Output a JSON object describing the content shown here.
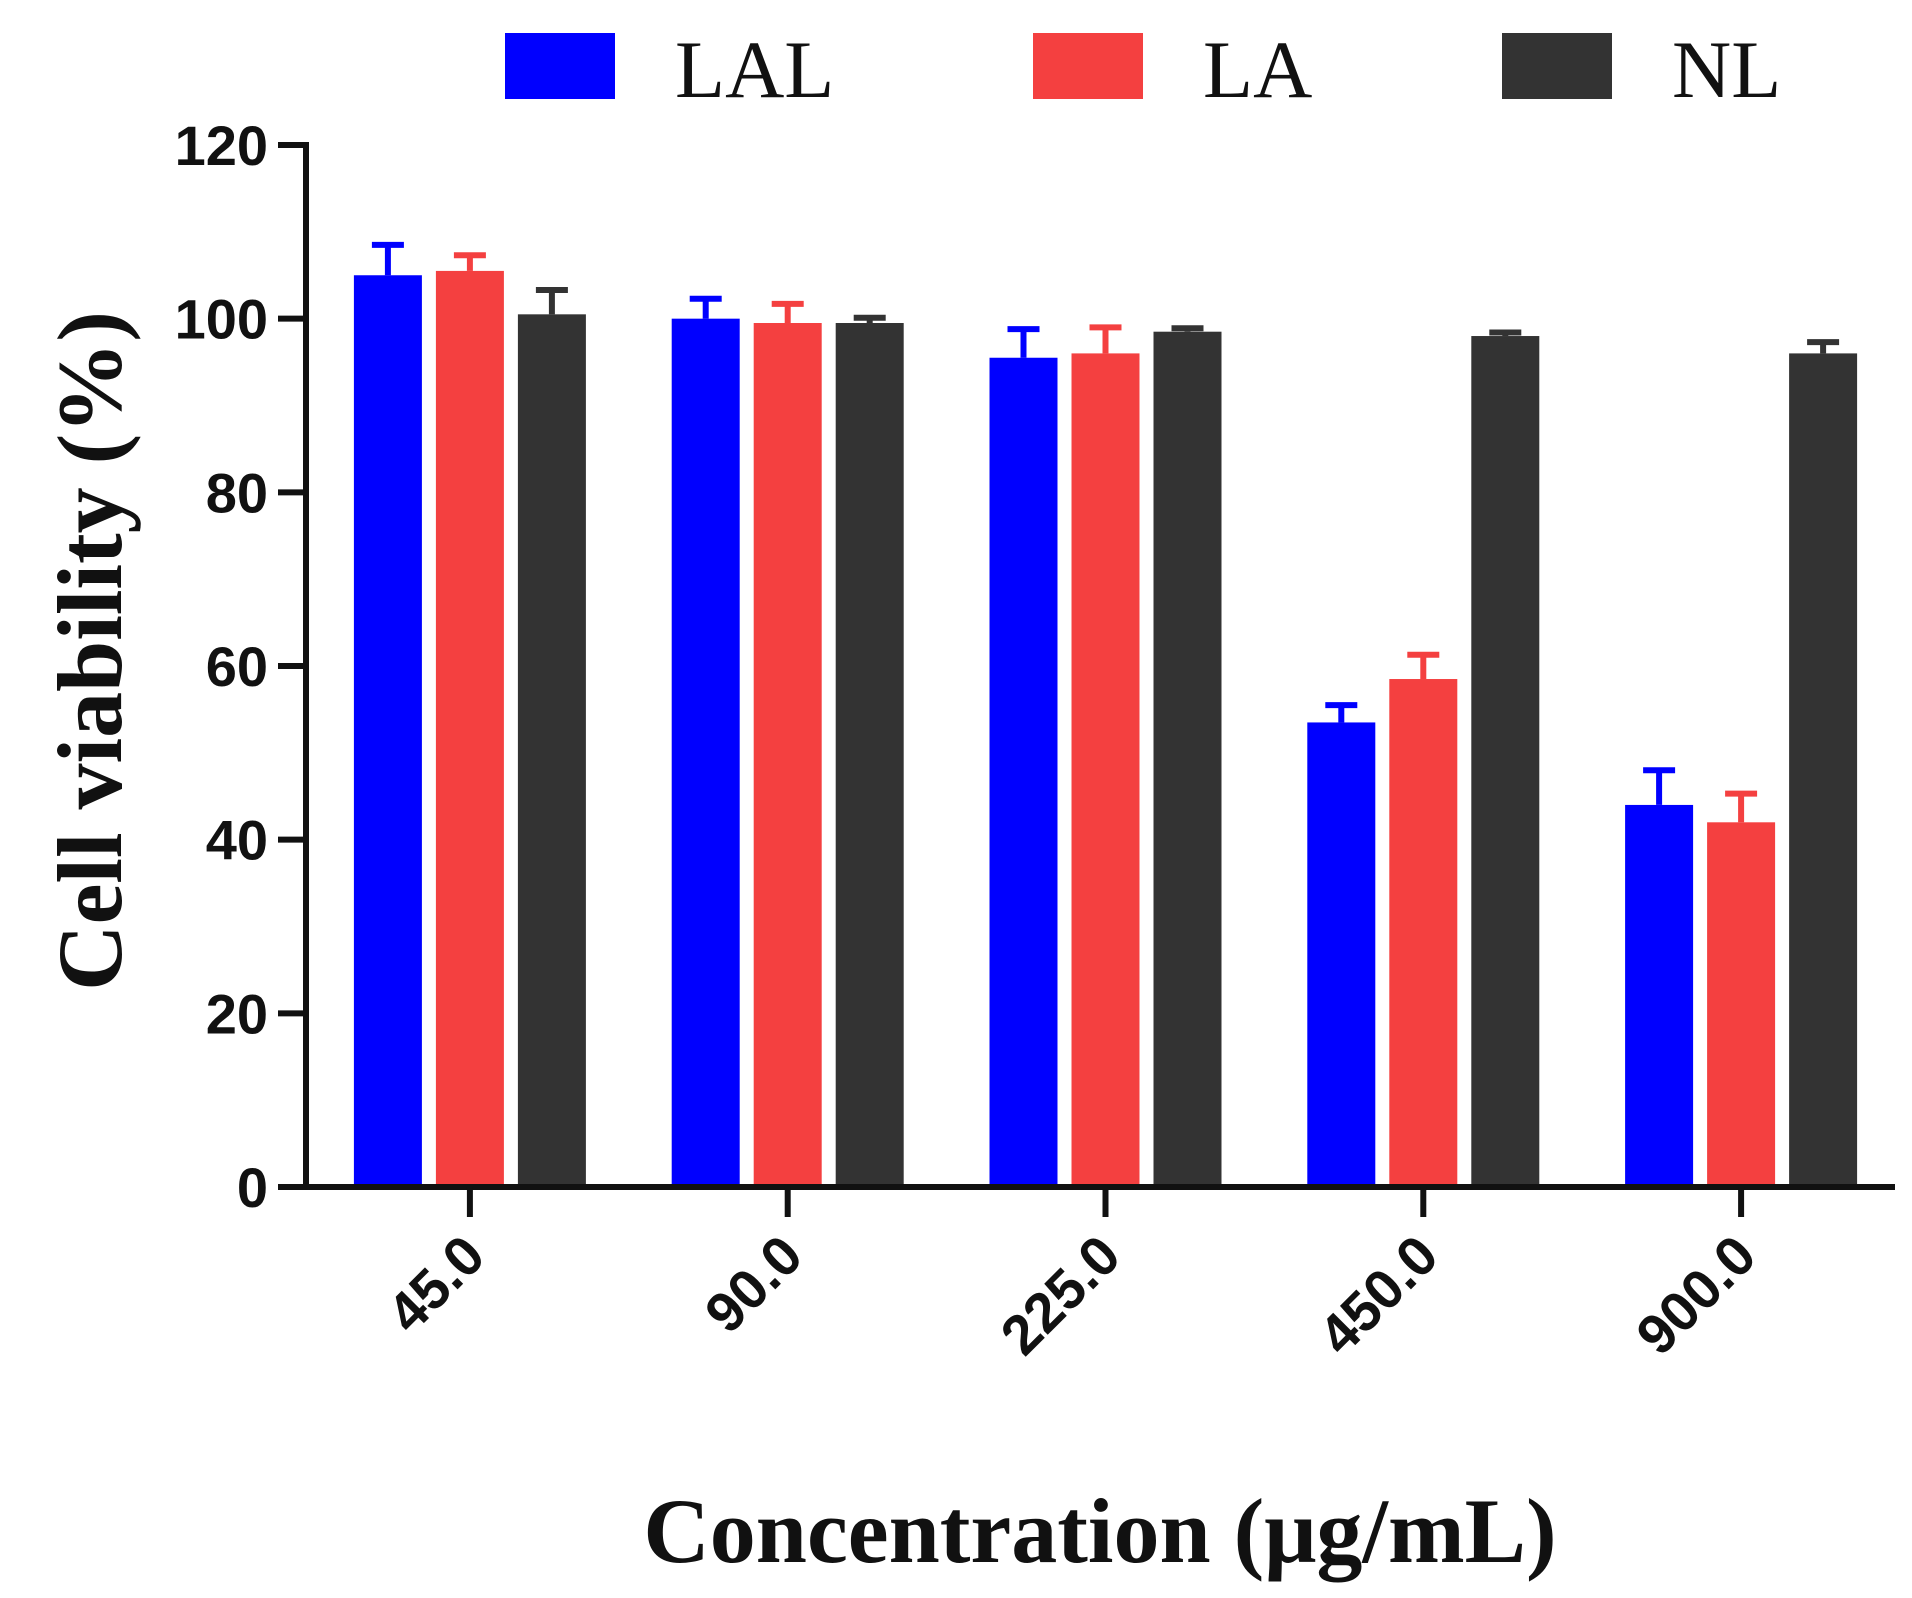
{
  "chart_data": {
    "type": "bar",
    "title": "",
    "xlabel": "Concentration (μg/mL)",
    "ylabel": "Cell viability (%)",
    "ylim": [
      0,
      120
    ],
    "yticks": [
      "0",
      "20",
      "40",
      "60",
      "80",
      "100",
      "120"
    ],
    "categories": [
      "45.0",
      "90.0",
      "225.0",
      "450.0",
      "900.0"
    ],
    "legend_position": "top",
    "grid": false,
    "series": [
      {
        "name": "LAL",
        "color": "#0000ff",
        "values": [
          105.0,
          100.0,
          95.5,
          53.5,
          44.0
        ],
        "errors": [
          3.5,
          2.3,
          3.3,
          2.0,
          4.0
        ]
      },
      {
        "name": "LA",
        "color": "#f44040",
        "values": [
          105.5,
          99.5,
          96.0,
          58.5,
          42.0
        ],
        "errors": [
          1.8,
          2.2,
          3.0,
          2.8,
          3.3
        ]
      },
      {
        "name": "NL",
        "color": "#333333",
        "values": [
          100.5,
          99.5,
          98.5,
          98.0,
          96.0
        ],
        "errors": [
          2.8,
          0.6,
          0.4,
          0.4,
          1.3
        ]
      }
    ]
  }
}
